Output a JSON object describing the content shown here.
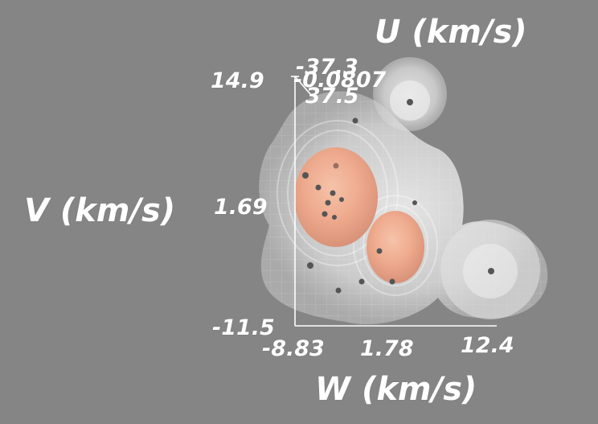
{
  "chart_data": {
    "type": "3d-isosurface-scatter",
    "axes": {
      "u": {
        "label": "U (km/s)",
        "ticks": [
          "-37.3",
          "-0.0807",
          "37.5"
        ]
      },
      "v": {
        "label": "V (km/s)",
        "ticks": [
          "14.9",
          "1.69",
          "-11.5"
        ]
      },
      "w": {
        "label": "W (km/s)",
        "ticks": [
          "-8.83",
          "1.78",
          "12.4"
        ]
      }
    },
    "colors": {
      "background": "#858585",
      "outer_surface": "#ececec",
      "inner_core": "#f0a88a",
      "points": "#555555",
      "axis": "#ffffff"
    }
  }
}
